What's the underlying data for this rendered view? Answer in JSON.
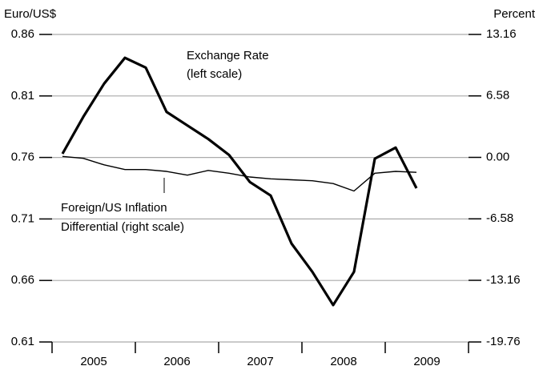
{
  "chart_data": {
    "type": "line",
    "y_label": "Euro/US$",
    "y2_label": "Percent",
    "annotations": [
      "Exchange Rate",
      "(left scale)",
      "Foreign/US Inflation",
      "Differential (right scale)"
    ],
    "x": [
      2005.125,
      2005.375,
      2005.625,
      2005.875,
      2006.125,
      2006.375,
      2006.625,
      2006.875,
      2007.125,
      2007.375,
      2007.625,
      2007.875,
      2008.125,
      2008.375,
      2008.625,
      2008.875,
      2009.125,
      2009.375
    ],
    "xlim": [
      2005,
      2010
    ],
    "xticks": [
      {
        "value": 2005.5,
        "label": "2005"
      },
      {
        "value": 2006.5,
        "label": "2006"
      },
      {
        "value": 2007.5,
        "label": "2007"
      },
      {
        "value": 2008.5,
        "label": "2008"
      },
      {
        "value": 2009.5,
        "label": "2009"
      }
    ],
    "ylim": [
      0.61,
      0.86
    ],
    "yticks": [
      0.86,
      0.81,
      0.76,
      0.71,
      0.66,
      0.61
    ],
    "y2lim": [
      -19.76,
      13.16
    ],
    "y2ticks": [
      13.16,
      6.58,
      {
        "value": 0,
        "label": "0.00"
      },
      -6.58,
      -13.16,
      -19.76
    ],
    "grid": true,
    "series": [
      {
        "name": "Exchange Rate",
        "color": "#000000",
        "width": 3.2,
        "values": [
          0.763,
          0.793,
          0.82,
          0.841,
          0.833,
          0.797,
          0.786,
          0.775,
          0.762,
          0.74,
          0.729,
          0.69,
          0.667,
          0.64,
          0.667,
          0.759,
          0.768,
          0.735
        ]
      },
      {
        "name": "Foreign/US Inflation Differential",
        "color": "#000000",
        "width": 1.4,
        "axis": "y2",
        "values": [
          0.1,
          -0.1,
          -0.8,
          -1.3,
          -1.3,
          -1.5,
          -1.9,
          -1.4,
          -1.7,
          -2.1,
          -2.3,
          -2.4,
          -2.5,
          -2.8,
          -3.6,
          -1.7,
          -1.5,
          -1.6
        ]
      }
    ]
  }
}
